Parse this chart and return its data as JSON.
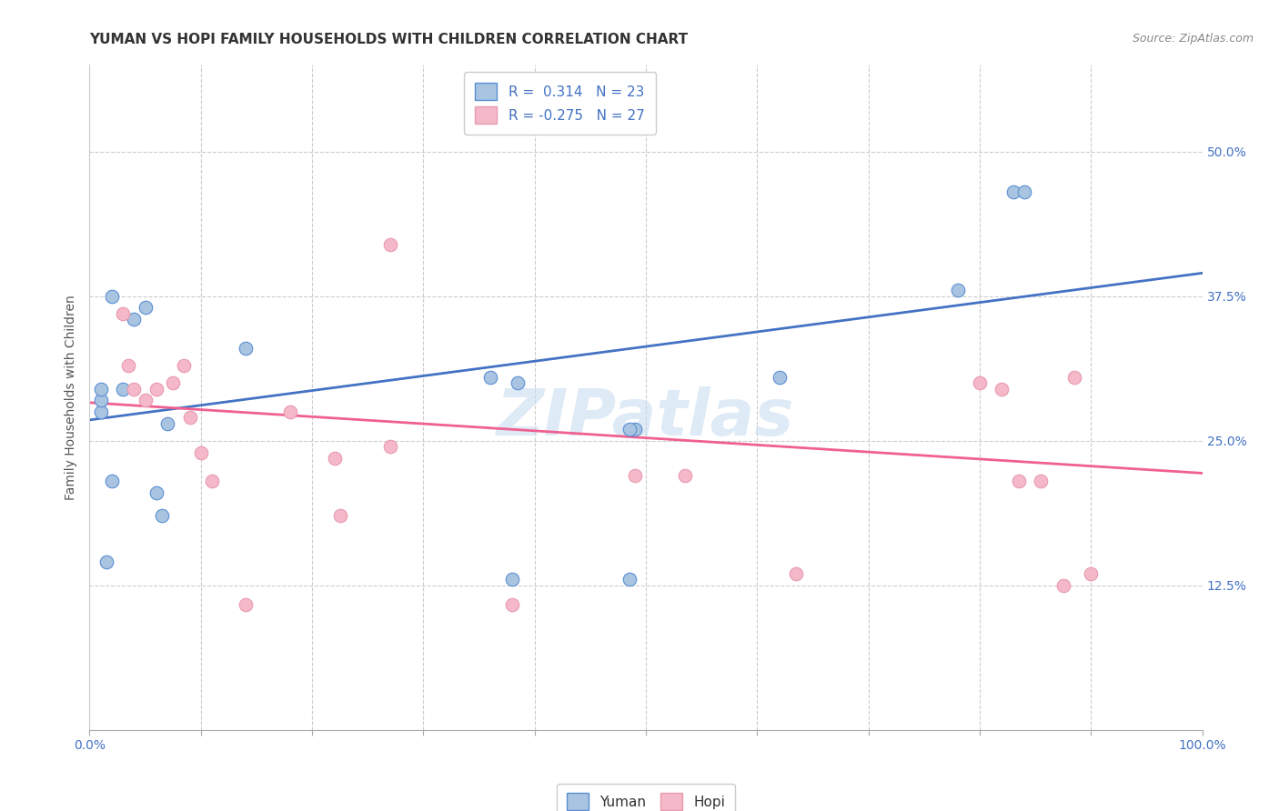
{
  "title": "YUMAN VS HOPI FAMILY HOUSEHOLDS WITH CHILDREN CORRELATION CHART",
  "source": "Source: ZipAtlas.com",
  "ylabel": "Family Households with Children",
  "xlim": [
    0.0,
    1.0
  ],
  "ylim": [
    0.0,
    0.575
  ],
  "yticks": [
    0.125,
    0.25,
    0.375,
    0.5
  ],
  "ytick_labels": [
    "12.5%",
    "25.0%",
    "37.5%",
    "50.0%"
  ],
  "xticks": [
    0.0,
    0.1,
    0.2,
    0.3,
    0.4,
    0.5,
    0.6,
    0.7,
    0.8,
    0.9,
    1.0
  ],
  "yuman_color": "#a8c4e0",
  "hopi_color": "#f4b8c8",
  "yuman_edge_color": "#5b8fd4",
  "hopi_edge_color": "#e89ab0",
  "yuman_line_color": "#4472c4",
  "hopi_line_color": "#f06090",
  "R_yuman": "0.314",
  "N_yuman": "23",
  "R_hopi": "-0.275",
  "N_hopi": "27",
  "watermark": "ZIPatlas",
  "yuman_x": [
    0.02,
    0.04,
    0.05,
    0.07,
    0.01,
    0.01,
    0.01,
    0.02,
    0.03,
    0.06,
    0.065,
    0.14,
    0.36,
    0.49,
    0.485,
    0.485,
    0.62,
    0.78,
    0.83,
    0.84,
    0.38,
    0.385,
    0.015
  ],
  "yuman_y": [
    0.375,
    0.355,
    0.365,
    0.265,
    0.275,
    0.285,
    0.295,
    0.215,
    0.295,
    0.205,
    0.185,
    0.33,
    0.305,
    0.26,
    0.26,
    0.13,
    0.305,
    0.38,
    0.465,
    0.465,
    0.13,
    0.3,
    0.145
  ],
  "hopi_x": [
    0.03,
    0.035,
    0.04,
    0.05,
    0.06,
    0.075,
    0.085,
    0.09,
    0.1,
    0.11,
    0.18,
    0.22,
    0.225,
    0.27,
    0.14,
    0.27,
    0.49,
    0.535,
    0.635,
    0.8,
    0.82,
    0.835,
    0.855,
    0.875,
    0.885,
    0.9,
    0.38
  ],
  "hopi_y": [
    0.36,
    0.315,
    0.295,
    0.285,
    0.295,
    0.3,
    0.315,
    0.27,
    0.24,
    0.215,
    0.275,
    0.235,
    0.185,
    0.245,
    0.108,
    0.42,
    0.22,
    0.22,
    0.135,
    0.3,
    0.295,
    0.215,
    0.215,
    0.125,
    0.305,
    0.135,
    0.108
  ],
  "yuman_trend": [
    0.268,
    0.395
  ],
  "hopi_trend": [
    0.283,
    0.222
  ],
  "background_color": "#ffffff",
  "grid_color": "#cccccc",
  "title_fontsize": 11,
  "axis_label_fontsize": 10,
  "tick_fontsize": 10,
  "legend_fontsize": 11,
  "source_fontsize": 9,
  "watermark_fontsize": 52,
  "marker_size": 110
}
